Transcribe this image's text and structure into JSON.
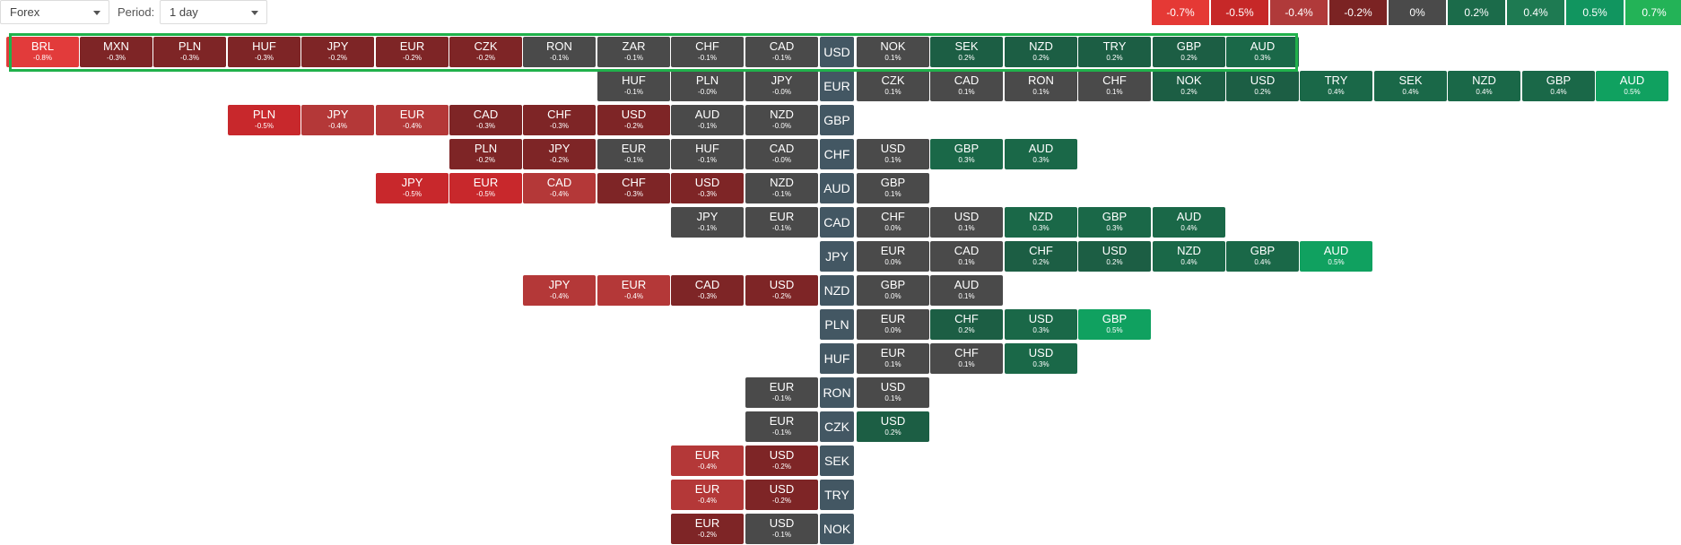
{
  "toolbar": {
    "market_select": "Forex",
    "period_label": "Period:",
    "period_select": "1 day"
  },
  "legend": {
    "cells": [
      {
        "label": "-0.7%",
        "color": "#e53935"
      },
      {
        "label": "-0.5%",
        "color": "#c62828"
      },
      {
        "label": "-0.4%",
        "color": "#b03a3a"
      },
      {
        "label": "-0.2%",
        "color": "#7b2323"
      },
      {
        "label": "0%",
        "color": "#4a4a4a"
      },
      {
        "label": "0.2%",
        "color": "#1b6b4a"
      },
      {
        "label": "0.4%",
        "color": "#1e7a52"
      },
      {
        "label": "0.5%",
        "color": "#11955f"
      },
      {
        "label": "0.7%",
        "color": "#23b357"
      }
    ]
  },
  "heatmap": {
    "selected_row": "USD",
    "rows": [
      {
        "base": "USD",
        "left": [
          {
            "code": "BRL",
            "change": "-0.8%"
          },
          {
            "code": "MXN",
            "change": "-0.3%"
          },
          {
            "code": "PLN",
            "change": "-0.3%"
          },
          {
            "code": "HUF",
            "change": "-0.3%"
          },
          {
            "code": "JPY",
            "change": "-0.2%"
          },
          {
            "code": "EUR",
            "change": "-0.2%"
          },
          {
            "code": "CZK",
            "change": "-0.2%"
          },
          {
            "code": "RON",
            "change": "-0.1%"
          },
          {
            "code": "ZAR",
            "change": "-0.1%"
          },
          {
            "code": "CHF",
            "change": "-0.1%"
          },
          {
            "code": "CAD",
            "change": "-0.1%"
          }
        ],
        "right": [
          {
            "code": "NOK",
            "change": "0.1%"
          },
          {
            "code": "SEK",
            "change": "0.2%"
          },
          {
            "code": "NZD",
            "change": "0.2%"
          },
          {
            "code": "TRY",
            "change": "0.2%"
          },
          {
            "code": "GBP",
            "change": "0.2%"
          },
          {
            "code": "AUD",
            "change": "0.3%"
          }
        ]
      },
      {
        "base": "EUR",
        "left": [
          {
            "code": "HUF",
            "change": "-0.1%"
          },
          {
            "code": "PLN",
            "change": "-0.0%"
          },
          {
            "code": "JPY",
            "change": "-0.0%"
          }
        ],
        "right": [
          {
            "code": "CZK",
            "change": "0.1%"
          },
          {
            "code": "CAD",
            "change": "0.1%"
          },
          {
            "code": "RON",
            "change": "0.1%"
          },
          {
            "code": "CHF",
            "change": "0.1%"
          },
          {
            "code": "NOK",
            "change": "0.2%"
          },
          {
            "code": "USD",
            "change": "0.2%"
          },
          {
            "code": "TRY",
            "change": "0.4%"
          },
          {
            "code": "SEK",
            "change": "0.4%"
          },
          {
            "code": "NZD",
            "change": "0.4%"
          },
          {
            "code": "GBP",
            "change": "0.4%"
          },
          {
            "code": "AUD",
            "change": "0.5%"
          }
        ]
      },
      {
        "base": "GBP",
        "left": [
          {
            "code": "PLN",
            "change": "-0.5%"
          },
          {
            "code": "JPY",
            "change": "-0.4%"
          },
          {
            "code": "EUR",
            "change": "-0.4%"
          },
          {
            "code": "CAD",
            "change": "-0.3%"
          },
          {
            "code": "CHF",
            "change": "-0.3%"
          },
          {
            "code": "USD",
            "change": "-0.2%"
          },
          {
            "code": "AUD",
            "change": "-0.1%"
          },
          {
            "code": "NZD",
            "change": "-0.0%"
          }
        ],
        "right": []
      },
      {
        "base": "CHF",
        "left": [
          {
            "code": "PLN",
            "change": "-0.2%"
          },
          {
            "code": "JPY",
            "change": "-0.2%"
          },
          {
            "code": "EUR",
            "change": "-0.1%"
          },
          {
            "code": "HUF",
            "change": "-0.1%"
          },
          {
            "code": "CAD",
            "change": "-0.0%"
          }
        ],
        "right": [
          {
            "code": "USD",
            "change": "0.1%"
          },
          {
            "code": "GBP",
            "change": "0.3%"
          },
          {
            "code": "AUD",
            "change": "0.3%"
          }
        ]
      },
      {
        "base": "AUD",
        "left": [
          {
            "code": "JPY",
            "change": "-0.5%"
          },
          {
            "code": "EUR",
            "change": "-0.5%"
          },
          {
            "code": "CAD",
            "change": "-0.4%"
          },
          {
            "code": "CHF",
            "change": "-0.3%"
          },
          {
            "code": "USD",
            "change": "-0.3%"
          },
          {
            "code": "NZD",
            "change": "-0.1%"
          }
        ],
        "right": [
          {
            "code": "GBP",
            "change": "0.1%"
          }
        ]
      },
      {
        "base": "CAD",
        "left": [
          {
            "code": "JPY",
            "change": "-0.1%"
          },
          {
            "code": "EUR",
            "change": "-0.1%"
          }
        ],
        "right": [
          {
            "code": "CHF",
            "change": "0.0%"
          },
          {
            "code": "USD",
            "change": "0.1%"
          },
          {
            "code": "NZD",
            "change": "0.3%"
          },
          {
            "code": "GBP",
            "change": "0.3%"
          },
          {
            "code": "AUD",
            "change": "0.4%"
          }
        ]
      },
      {
        "base": "JPY",
        "left": [],
        "right": [
          {
            "code": "EUR",
            "change": "0.0%"
          },
          {
            "code": "CAD",
            "change": "0.1%"
          },
          {
            "code": "CHF",
            "change": "0.2%"
          },
          {
            "code": "USD",
            "change": "0.2%"
          },
          {
            "code": "NZD",
            "change": "0.4%"
          },
          {
            "code": "GBP",
            "change": "0.4%"
          },
          {
            "code": "AUD",
            "change": "0.5%"
          }
        ]
      },
      {
        "base": "NZD",
        "left": [
          {
            "code": "JPY",
            "change": "-0.4%"
          },
          {
            "code": "EUR",
            "change": "-0.4%"
          },
          {
            "code": "CAD",
            "change": "-0.3%"
          },
          {
            "code": "USD",
            "change": "-0.2%"
          }
        ],
        "right": [
          {
            "code": "GBP",
            "change": "0.0%"
          },
          {
            "code": "AUD",
            "change": "0.1%"
          }
        ]
      },
      {
        "base": "PLN",
        "left": [],
        "right": [
          {
            "code": "EUR",
            "change": "0.0%"
          },
          {
            "code": "CHF",
            "change": "0.2%"
          },
          {
            "code": "USD",
            "change": "0.3%"
          },
          {
            "code": "GBP",
            "change": "0.5%"
          }
        ]
      },
      {
        "base": "HUF",
        "left": [],
        "right": [
          {
            "code": "EUR",
            "change": "0.1%"
          },
          {
            "code": "CHF",
            "change": "0.1%"
          },
          {
            "code": "USD",
            "change": "0.3%"
          }
        ]
      },
      {
        "base": "RON",
        "left": [
          {
            "code": "EUR",
            "change": "-0.1%"
          }
        ],
        "right": [
          {
            "code": "USD",
            "change": "0.1%"
          }
        ]
      },
      {
        "base": "CZK",
        "left": [
          {
            "code": "EUR",
            "change": "-0.1%"
          }
        ],
        "right": [
          {
            "code": "USD",
            "change": "0.2%"
          }
        ]
      },
      {
        "base": "SEK",
        "left": [
          {
            "code": "EUR",
            "change": "-0.4%"
          },
          {
            "code": "USD",
            "change": "-0.2%"
          }
        ],
        "right": []
      },
      {
        "base": "TRY",
        "left": [
          {
            "code": "EUR",
            "change": "-0.4%"
          },
          {
            "code": "USD",
            "change": "-0.2%"
          }
        ],
        "right": []
      },
      {
        "base": "NOK",
        "left": [
          {
            "code": "EUR",
            "change": "-0.2%"
          },
          {
            "code": "USD",
            "change": "-0.1%"
          }
        ],
        "right": []
      }
    ]
  }
}
